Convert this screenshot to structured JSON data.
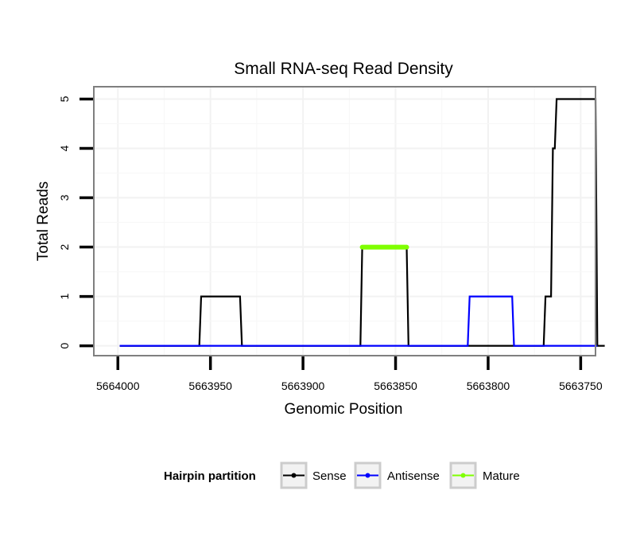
{
  "chart_data": {
    "type": "line",
    "title": "Small RNA-seq Read Density",
    "xlabel": "Genomic Position",
    "ylabel": "Total Reads",
    "x_reversed": true,
    "xlim": [
      5664013,
      5663742
    ],
    "ylim": [
      -0.2,
      5.25
    ],
    "x_ticks": [
      5664000,
      5663950,
      5663900,
      5663850,
      5663800,
      5663750
    ],
    "x_tick_labels": [
      "5664000",
      "5663950",
      "5663900",
      "5663850",
      "5663800",
      "5663750"
    ],
    "y_ticks": [
      0,
      1,
      2,
      3,
      4,
      5
    ],
    "y_tick_labels": [
      "0",
      "1",
      "2",
      "3",
      "4",
      "5"
    ],
    "grid": true,
    "legend": {
      "title": "Hairpin partition",
      "position": "bottom"
    },
    "series": [
      {
        "name": "Sense",
        "color": "#000000",
        "x": [
          5663999,
          5663956,
          5663955,
          5663934,
          5663933,
          5663869,
          5663868,
          5663844,
          5663843,
          5663770,
          5663769,
          5663766,
          5663765,
          5663764,
          5663763,
          5663761,
          5663760,
          5663742,
          5663741,
          5663737
        ],
        "values": [
          0,
          0,
          1,
          1,
          0,
          0,
          2,
          2,
          0,
          0,
          1,
          1,
          4,
          4,
          5,
          5,
          5,
          5,
          0,
          0
        ]
      },
      {
        "name": "Antisense",
        "color": "#0000ff",
        "x": [
          5663999,
          5663843,
          5663811,
          5663810,
          5663787,
          5663786,
          5663741
        ],
        "values": [
          0,
          0,
          0,
          1,
          1,
          0,
          0
        ]
      },
      {
        "name": "Mature",
        "color": "#7fff00",
        "x": [
          5663868,
          5663844
        ],
        "values": [
          2,
          2
        ]
      }
    ]
  }
}
